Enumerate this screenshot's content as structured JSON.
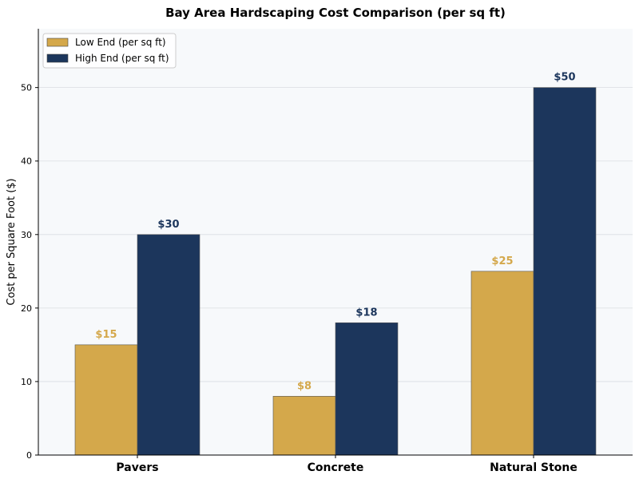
{
  "chart_data": {
    "type": "bar",
    "title": "Bay Area Hardscaping Cost Comparison (per sq ft)",
    "xlabel": "",
    "ylabel": "Cost per Square Foot ($)",
    "ylim": [
      0,
      58
    ],
    "yticks": [
      0,
      10,
      20,
      30,
      40,
      50
    ],
    "grid": true,
    "legend_position": "top-left",
    "categories": [
      "Pavers",
      "Concrete",
      "Natural Stone"
    ],
    "series": [
      {
        "name": "Low End (per sq ft)",
        "values": [
          15,
          8,
          25
        ],
        "labels": [
          "$15",
          "$8",
          "$25"
        ],
        "color": "#D4A84B",
        "label_color": "#D4A84B"
      },
      {
        "name": "High End (per sq ft)",
        "values": [
          30,
          18,
          50
        ],
        "labels": [
          "$30",
          "$18",
          "$50"
        ],
        "color": "#1C365C",
        "label_color": "#1C365C"
      }
    ],
    "colors": {
      "plot_background": "#F7F9FB",
      "grid": "#DADDE2",
      "axis": "#000000"
    }
  }
}
